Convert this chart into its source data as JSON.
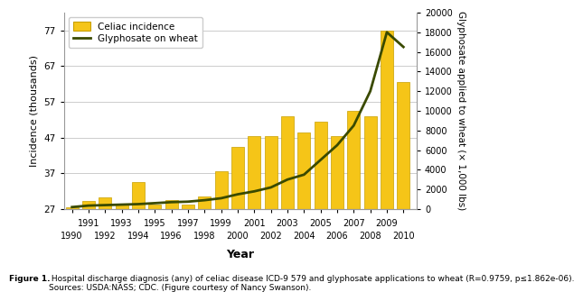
{
  "years": [
    1990,
    1991,
    1992,
    1993,
    1994,
    1995,
    1996,
    1997,
    1998,
    1999,
    2000,
    2001,
    2002,
    2003,
    2004,
    2005,
    2006,
    2007,
    2008,
    2009,
    2010
  ],
  "celiac_incidence": [
    27.5,
    29.2,
    30.2,
    28.2,
    34.5,
    28.2,
    29.5,
    28.2,
    30.5,
    37.5,
    44.5,
    47.5,
    47.5,
    53.0,
    48.5,
    51.5,
    47.5,
    54.5,
    53.0,
    77.0,
    62.5
  ],
  "glyphosate": [
    200,
    350,
    400,
    450,
    500,
    600,
    700,
    750,
    900,
    1100,
    1500,
    1800,
    2200,
    3000,
    3500,
    5000,
    6500,
    8500,
    12000,
    18000,
    16500
  ],
  "bar_color": "#f5c518",
  "bar_edgecolor": "#c8a000",
  "line_color": "#3a4a00",
  "left_yticks": [
    27,
    37,
    47,
    57,
    67,
    77
  ],
  "right_yticks": [
    0,
    2000,
    4000,
    6000,
    8000,
    10000,
    12000,
    14000,
    16000,
    18000,
    20000
  ],
  "left_ylim": [
    27,
    82
  ],
  "right_ylim": [
    0,
    20000
  ],
  "xlabel": "Year",
  "ylabel_left": "Incidence (thousands)",
  "ylabel_right": "Glyphosate applied to wheat (× 1,000 lbs)",
  "legend_celiac": "Celiac incidence",
  "legend_glyphosate": "Glyphosate on wheat",
  "caption_bold": "Figure 1.",
  "caption_normal": " Hospital discharge diagnosis (any) of celiac disease ICD-9 579 and glyphosate applications to wheat (R=0.9759, p≤1.862e-06).\nSources: USDA:NASS; CDC. (Figure courtesy of Nancy Swanson).",
  "bg_color": "#ffffff",
  "grid_color": "#cccccc",
  "odd_years": [
    1991,
    1993,
    1995,
    1997,
    1999,
    2001,
    2003,
    2005,
    2007,
    2009
  ],
  "even_years": [
    1990,
    1992,
    1994,
    1996,
    1998,
    2000,
    2002,
    2004,
    2006,
    2008,
    2010
  ]
}
